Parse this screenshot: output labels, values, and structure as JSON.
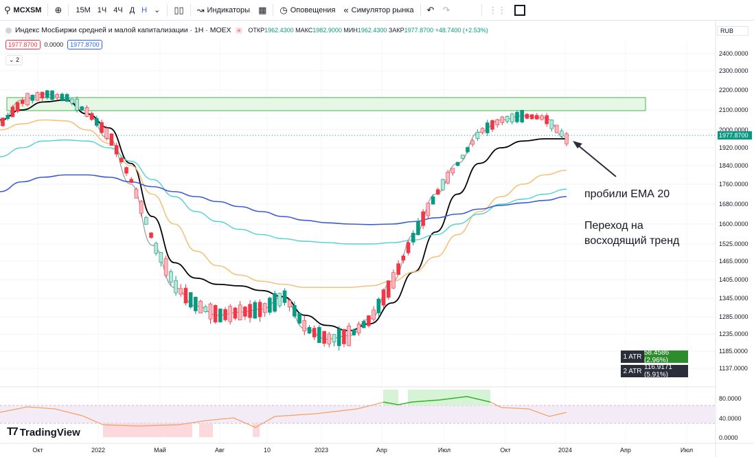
{
  "toolbar": {
    "symbol": "MCXSM",
    "timeframes": [
      "15М",
      "1Ч",
      "4Ч",
      "Д",
      "Н"
    ],
    "active_timeframe": "Н",
    "indicators_label": "Индикаторы",
    "alerts_label": "Оповещения",
    "replay_label": "Симулятор рынка"
  },
  "legend": {
    "title": "Индекс МосБиржи средней и малой капитализации · 1Н · MOEX",
    "open_label": "ОТКР",
    "open": "1962.4300",
    "high_label": "МАКС",
    "high": "1982.9000",
    "low_label": "МИН",
    "low": "1962.4300",
    "close_label": "ЗАКР",
    "close": "1977.8700",
    "change": "+48.7400 (+2.53%)",
    "ind_values": [
      "1977.8700",
      "0.0000",
      "1977.8700"
    ],
    "collapse_count": "2"
  },
  "currency": "RUB",
  "atr": [
    {
      "label": "1 ATR",
      "value": "58.4586 (2.96%)",
      "color": "#2e8b2e"
    },
    {
      "label": "2 ATR",
      "value": "116.9171 (5.91%)",
      "color": "#2a2e39"
    }
  ],
  "annotation": {
    "line1": "пробили ЕМА 20",
    "line2": "Переход на",
    "line3": "восходящий тренд"
  },
  "logo": "TradingView",
  "colors": {
    "up": "#089981",
    "down": "#f23645",
    "ema_fast": "#9e9e9e",
    "ema_black": "#000000",
    "ema_orange": "#f7c17a",
    "ema_cyan": "#4dd0d8",
    "ema_blue": "#3b5bd6",
    "accent": "#2962ff"
  },
  "chart_data": {
    "type": "line",
    "price_axis": [
      "2400.0000",
      "2300.0000",
      "2200.0000",
      "2100.0000",
      "2000.0000",
      "1920.0000",
      "1840.0000",
      "1760.0000",
      "1680.0000",
      "1600.0000",
      "1525.0000",
      "1465.0000",
      "1405.0000",
      "1345.0000",
      "1285.0000",
      "1235.0000",
      "1185.0000",
      "1137.0000"
    ],
    "last_price": "1977.8700",
    "time_axis": [
      "Окт",
      "2022",
      "Май",
      "Авг",
      "10",
      "2023",
      "Апр",
      "Июл",
      "Окт",
      "2024",
      "Апр",
      "Июл"
    ],
    "resistance_zone": [
      2100,
      2160
    ],
    "series": [
      {
        "name": "EMA fast",
        "values": [
          2040,
          2150,
          2180,
          2160,
          2080,
          1960,
          1760,
          1520,
          1380,
          1320,
          1290,
          1300,
          1310,
          1350,
          1250,
          1220,
          1230,
          1280,
          1400,
          1560,
          1720,
          1850,
          1990,
          2050,
          2070,
          2060,
          1960
        ]
      },
      {
        "name": "EMA black",
        "values": [
          2050,
          2100,
          2140,
          2150,
          2080,
          2010,
          1850,
          1630,
          1460,
          1410,
          1390,
          1385,
          1370,
          1350,
          1290,
          1260,
          1245,
          1265,
          1330,
          1430,
          1570,
          1720,
          1850,
          1920,
          1950,
          1960,
          1960
        ]
      },
      {
        "name": "EMA 50",
        "values": [
          2000,
          2030,
          2050,
          2045,
          2000,
          1940,
          1840,
          1720,
          1600,
          1500,
          1450,
          1420,
          1400,
          1390,
          1380,
          1380,
          1380,
          1385,
          1400,
          1430,
          1480,
          1560,
          1650,
          1710,
          1760,
          1800,
          1820
        ]
      },
      {
        "name": "EMA 100",
        "values": [
          1880,
          1920,
          1950,
          1955,
          1950,
          1920,
          1860,
          1780,
          1710,
          1650,
          1610,
          1580,
          1560,
          1545,
          1535,
          1530,
          1525,
          1525,
          1530,
          1540,
          1560,
          1600,
          1640,
          1680,
          1700,
          1720,
          1740
        ]
      },
      {
        "name": "EMA 200",
        "values": [
          1730,
          1770,
          1790,
          1800,
          1800,
          1790,
          1770,
          1750,
          1730,
          1710,
          1690,
          1670,
          1650,
          1630,
          1615,
          1605,
          1600,
          1598,
          1600,
          1610,
          1625,
          1640,
          1660,
          1675,
          1685,
          1695,
          1710
        ]
      }
    ],
    "rsi_axis": [
      "80.0000",
      "40.0000",
      "0.0000"
    ]
  }
}
